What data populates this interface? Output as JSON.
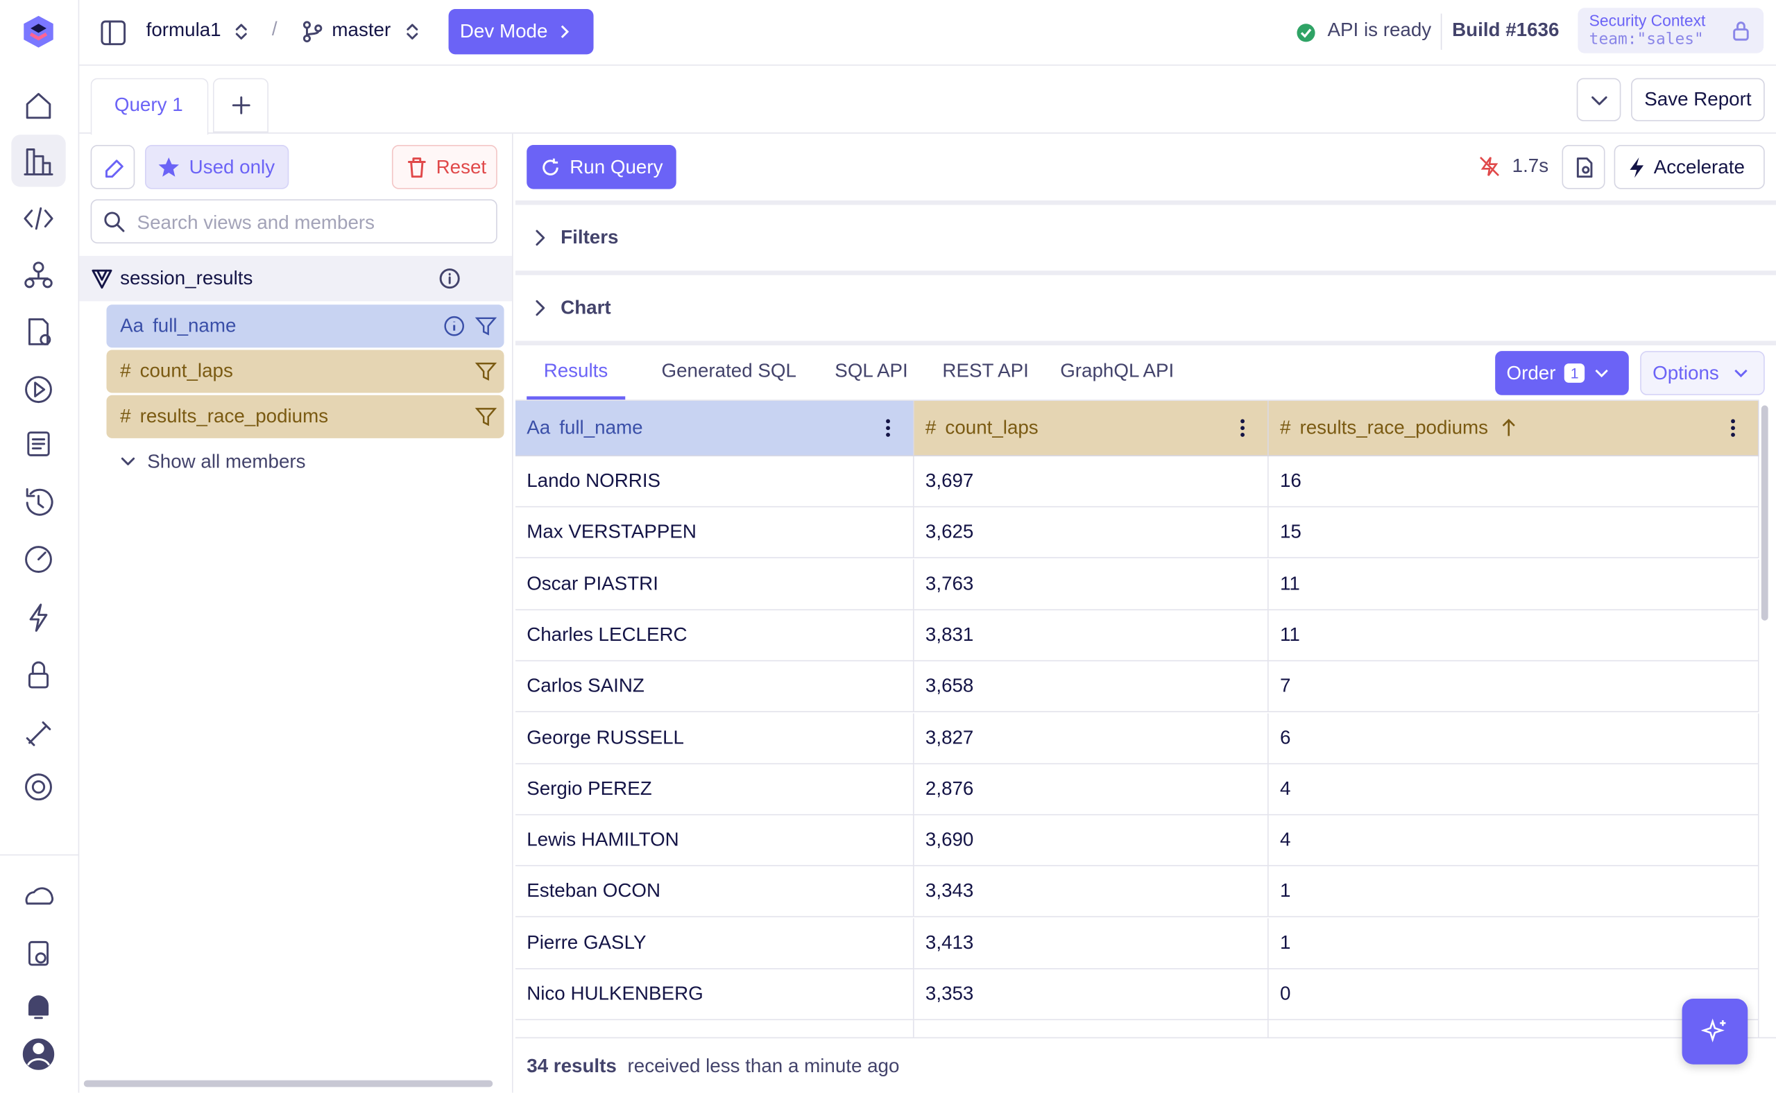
{
  "header": {
    "project": "formula1",
    "branch": "master",
    "dev_mode": "Dev Mode",
    "api_status": "API is ready",
    "build": "Build #1636",
    "security_context": "Security Context",
    "security_value": "team:\"sales\""
  },
  "tabs": [
    "Query 1"
  ],
  "save_report": "Save Report",
  "sidebar": {
    "used_only": "Used only",
    "reset": "Reset",
    "search_placeholder": "Search views and members",
    "view": "session_results",
    "members": [
      {
        "type": "Aa",
        "name": "full_name"
      },
      {
        "type": "#",
        "name": "count_laps"
      },
      {
        "type": "#",
        "name": "results_race_podiums"
      }
    ],
    "show_all": "Show all members"
  },
  "toolbar": {
    "run_query": "Run Query",
    "duration": "1.7s",
    "accelerate": "Accelerate"
  },
  "sections": [
    "Filters",
    "Chart"
  ],
  "results": {
    "tabs": [
      "Results",
      "Generated SQL",
      "SQL API",
      "REST API",
      "GraphQL API"
    ],
    "order": "Order",
    "order_count": 1,
    "options": "Options"
  },
  "table": {
    "columns": [
      {
        "type": "Aa",
        "name": "full_name"
      },
      {
        "type": "#",
        "name": "count_laps"
      },
      {
        "type": "#",
        "name": "results_race_podiums"
      }
    ],
    "rows": [
      [
        "Lando NORRIS",
        "3,697",
        16
      ],
      [
        "Max VERSTAPPEN",
        "3,625",
        15
      ],
      [
        "Oscar PIASTRI",
        "3,763",
        11
      ],
      [
        "Charles LECLERC",
        "3,831",
        11
      ],
      [
        "Carlos SAINZ",
        "3,658",
        7
      ],
      [
        "George RUSSELL",
        "3,827",
        6
      ],
      [
        "Sergio PEREZ",
        "2,876",
        4
      ],
      [
        "Lewis HAMILTON",
        "3,690",
        4
      ],
      [
        "Esteban OCON",
        "3,343",
        1
      ],
      [
        "Pierre GASLY",
        "3,413",
        1
      ],
      [
        "Nico HULKENBERG",
        "3,353",
        0
      ]
    ]
  },
  "footer": {
    "count": "34 results",
    "received": "received less than a minute ago"
  }
}
